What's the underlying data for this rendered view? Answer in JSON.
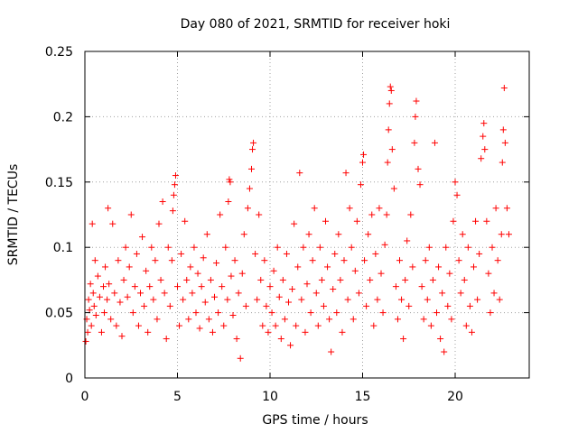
{
  "chart_data": {
    "type": "scatter",
    "title": "Day 080 of 2021, SRMTID for receiver hoki",
    "xlabel": "GPS time / hours",
    "ylabel": "SRMTID / TECUs",
    "xlim": [
      0,
      24
    ],
    "ylim": [
      0,
      0.25
    ],
    "x_ticks": [
      0,
      5,
      10,
      15,
      20
    ],
    "x_tick_labels": [
      "0",
      "5",
      "10",
      "15",
      "20"
    ],
    "y_ticks": [
      0,
      0.05,
      0.1,
      0.15,
      0.2,
      0.25
    ],
    "y_tick_labels": [
      "0",
      "0.05",
      "0.1",
      "0.15",
      "0.2",
      "0.25"
    ],
    "grid": true,
    "marker": "plus",
    "marker_color": "#ff0000",
    "series": [
      {
        "name": "SRMTID",
        "points": [
          [
            0.05,
            0.028
          ],
          [
            0.1,
            0.045
          ],
          [
            0.15,
            0.035
          ],
          [
            0.2,
            0.06
          ],
          [
            0.25,
            0.052
          ],
          [
            0.3,
            0.072
          ],
          [
            0.35,
            0.04
          ],
          [
            0.4,
            0.118
          ],
          [
            0.45,
            0.065
          ],
          [
            0.5,
            0.055
          ],
          [
            0.55,
            0.09
          ],
          [
            0.6,
            0.048
          ],
          [
            0.7,
            0.078
          ],
          [
            0.8,
            0.062
          ],
          [
            0.9,
            0.035
          ],
          [
            1.0,
            0.07
          ],
          [
            1.05,
            0.05
          ],
          [
            1.1,
            0.085
          ],
          [
            1.2,
            0.06
          ],
          [
            1.25,
            0.13
          ],
          [
            1.3,
            0.072
          ],
          [
            1.4,
            0.045
          ],
          [
            1.5,
            0.118
          ],
          [
            1.6,
            0.065
          ],
          [
            1.7,
            0.04
          ],
          [
            1.8,
            0.09
          ],
          [
            1.9,
            0.058
          ],
          [
            2.0,
            0.032
          ],
          [
            2.1,
            0.075
          ],
          [
            2.2,
            0.1
          ],
          [
            2.3,
            0.062
          ],
          [
            2.4,
            0.085
          ],
          [
            2.5,
            0.125
          ],
          [
            2.6,
            0.05
          ],
          [
            2.7,
            0.07
          ],
          [
            2.8,
            0.095
          ],
          [
            2.9,
            0.04
          ],
          [
            3.0,
            0.065
          ],
          [
            3.1,
            0.108
          ],
          [
            3.2,
            0.055
          ],
          [
            3.3,
            0.082
          ],
          [
            3.4,
            0.035
          ],
          [
            3.5,
            0.07
          ],
          [
            3.6,
            0.1
          ],
          [
            3.7,
            0.06
          ],
          [
            3.8,
            0.09
          ],
          [
            3.9,
            0.045
          ],
          [
            4.0,
            0.118
          ],
          [
            4.1,
            0.075
          ],
          [
            4.2,
            0.135
          ],
          [
            4.3,
            0.065
          ],
          [
            4.4,
            0.03
          ],
          [
            4.5,
            0.1
          ],
          [
            4.6,
            0.055
          ],
          [
            4.7,
            0.09
          ],
          [
            4.75,
            0.128
          ],
          [
            4.8,
            0.14
          ],
          [
            4.85,
            0.148
          ],
          [
            4.9,
            0.155
          ],
          [
            5.0,
            0.07
          ],
          [
            5.1,
            0.04
          ],
          [
            5.2,
            0.095
          ],
          [
            5.3,
            0.06
          ],
          [
            5.4,
            0.12
          ],
          [
            5.5,
            0.075
          ],
          [
            5.6,
            0.045
          ],
          [
            5.7,
            0.085
          ],
          [
            5.8,
            0.065
          ],
          [
            5.9,
            0.1
          ],
          [
            6.0,
            0.05
          ],
          [
            6.1,
            0.08
          ],
          [
            6.2,
            0.038
          ],
          [
            6.3,
            0.07
          ],
          [
            6.4,
            0.092
          ],
          [
            6.5,
            0.058
          ],
          [
            6.6,
            0.11
          ],
          [
            6.7,
            0.045
          ],
          [
            6.8,
            0.075
          ],
          [
            6.9,
            0.035
          ],
          [
            7.0,
            0.062
          ],
          [
            7.1,
            0.088
          ],
          [
            7.2,
            0.05
          ],
          [
            7.3,
            0.125
          ],
          [
            7.4,
            0.07
          ],
          [
            7.5,
            0.04
          ],
          [
            7.6,
            0.1
          ],
          [
            7.7,
            0.06
          ],
          [
            7.75,
            0.135
          ],
          [
            7.8,
            0.152
          ],
          [
            7.85,
            0.15
          ],
          [
            7.9,
            0.078
          ],
          [
            8.0,
            0.048
          ],
          [
            8.1,
            0.09
          ],
          [
            8.2,
            0.03
          ],
          [
            8.3,
            0.065
          ],
          [
            8.4,
            0.015
          ],
          [
            8.5,
            0.08
          ],
          [
            8.6,
            0.11
          ],
          [
            8.7,
            0.055
          ],
          [
            8.8,
            0.13
          ],
          [
            8.9,
            0.145
          ],
          [
            9.0,
            0.16
          ],
          [
            9.05,
            0.175
          ],
          [
            9.1,
            0.18
          ],
          [
            9.2,
            0.095
          ],
          [
            9.3,
            0.06
          ],
          [
            9.4,
            0.125
          ],
          [
            9.5,
            0.075
          ],
          [
            9.6,
            0.04
          ],
          [
            9.7,
            0.09
          ],
          [
            9.8,
            0.055
          ],
          [
            9.9,
            0.035
          ],
          [
            10.0,
            0.07
          ],
          [
            10.1,
            0.05
          ],
          [
            10.2,
            0.082
          ],
          [
            10.3,
            0.04
          ],
          [
            10.4,
            0.1
          ],
          [
            10.5,
            0.062
          ],
          [
            10.6,
            0.03
          ],
          [
            10.7,
            0.075
          ],
          [
            10.8,
            0.045
          ],
          [
            10.9,
            0.095
          ],
          [
            11.0,
            0.058
          ],
          [
            11.1,
            0.025
          ],
          [
            11.2,
            0.068
          ],
          [
            11.3,
            0.118
          ],
          [
            11.4,
            0.04
          ],
          [
            11.5,
            0.085
          ],
          [
            11.6,
            0.157
          ],
          [
            11.7,
            0.06
          ],
          [
            11.8,
            0.1
          ],
          [
            11.9,
            0.035
          ],
          [
            12.0,
            0.072
          ],
          [
            12.1,
            0.11
          ],
          [
            12.2,
            0.05
          ],
          [
            12.3,
            0.09
          ],
          [
            12.4,
            0.13
          ],
          [
            12.5,
            0.065
          ],
          [
            12.6,
            0.04
          ],
          [
            12.7,
            0.1
          ],
          [
            12.8,
            0.075
          ],
          [
            12.9,
            0.055
          ],
          [
            13.0,
            0.12
          ],
          [
            13.1,
            0.085
          ],
          [
            13.2,
            0.045
          ],
          [
            13.3,
            0.02
          ],
          [
            13.4,
            0.068
          ],
          [
            13.5,
            0.095
          ],
          [
            13.6,
            0.05
          ],
          [
            13.7,
            0.11
          ],
          [
            13.8,
            0.075
          ],
          [
            13.9,
            0.035
          ],
          [
            14.0,
            0.09
          ],
          [
            14.1,
            0.157
          ],
          [
            14.2,
            0.06
          ],
          [
            14.3,
            0.13
          ],
          [
            14.4,
            0.1
          ],
          [
            14.5,
            0.045
          ],
          [
            14.6,
            0.082
          ],
          [
            14.7,
            0.12
          ],
          [
            14.8,
            0.065
          ],
          [
            14.9,
            0.148
          ],
          [
            15.0,
            0.165
          ],
          [
            15.05,
            0.171
          ],
          [
            15.1,
            0.09
          ],
          [
            15.2,
            0.055
          ],
          [
            15.3,
            0.11
          ],
          [
            15.4,
            0.075
          ],
          [
            15.5,
            0.125
          ],
          [
            15.6,
            0.04
          ],
          [
            15.7,
            0.095
          ],
          [
            15.8,
            0.06
          ],
          [
            15.9,
            0.13
          ],
          [
            16.0,
            0.08
          ],
          [
            16.1,
            0.05
          ],
          [
            16.2,
            0.102
          ],
          [
            16.3,
            0.125
          ],
          [
            16.35,
            0.165
          ],
          [
            16.4,
            0.19
          ],
          [
            16.45,
            0.21
          ],
          [
            16.5,
            0.223
          ],
          [
            16.55,
            0.22
          ],
          [
            16.6,
            0.175
          ],
          [
            16.7,
            0.145
          ],
          [
            16.8,
            0.07
          ],
          [
            16.9,
            0.045
          ],
          [
            17.0,
            0.09
          ],
          [
            17.1,
            0.06
          ],
          [
            17.2,
            0.03
          ],
          [
            17.3,
            0.075
          ],
          [
            17.4,
            0.105
          ],
          [
            17.5,
            0.055
          ],
          [
            17.6,
            0.125
          ],
          [
            17.7,
            0.085
          ],
          [
            17.8,
            0.18
          ],
          [
            17.85,
            0.2
          ],
          [
            17.9,
            0.212
          ],
          [
            18.0,
            0.16
          ],
          [
            18.1,
            0.148
          ],
          [
            18.2,
            0.07
          ],
          [
            18.3,
            0.045
          ],
          [
            18.4,
            0.09
          ],
          [
            18.5,
            0.06
          ],
          [
            18.6,
            0.1
          ],
          [
            18.7,
            0.04
          ],
          [
            18.8,
            0.075
          ],
          [
            18.9,
            0.18
          ],
          [
            19.0,
            0.05
          ],
          [
            19.1,
            0.085
          ],
          [
            19.2,
            0.03
          ],
          [
            19.3,
            0.065
          ],
          [
            19.4,
            0.02
          ],
          [
            19.5,
            0.1
          ],
          [
            19.6,
            0.055
          ],
          [
            19.7,
            0.08
          ],
          [
            19.8,
            0.045
          ],
          [
            19.9,
            0.12
          ],
          [
            20.0,
            0.15
          ],
          [
            20.1,
            0.14
          ],
          [
            20.2,
            0.09
          ],
          [
            20.3,
            0.065
          ],
          [
            20.4,
            0.11
          ],
          [
            20.5,
            0.075
          ],
          [
            20.6,
            0.04
          ],
          [
            20.7,
            0.1
          ],
          [
            20.8,
            0.055
          ],
          [
            20.9,
            0.035
          ],
          [
            21.0,
            0.085
          ],
          [
            21.1,
            0.12
          ],
          [
            21.2,
            0.06
          ],
          [
            21.3,
            0.095
          ],
          [
            21.4,
            0.168
          ],
          [
            21.5,
            0.185
          ],
          [
            21.55,
            0.195
          ],
          [
            21.6,
            0.175
          ],
          [
            21.7,
            0.12
          ],
          [
            21.8,
            0.08
          ],
          [
            21.9,
            0.05
          ],
          [
            22.0,
            0.1
          ],
          [
            22.1,
            0.065
          ],
          [
            22.2,
            0.13
          ],
          [
            22.3,
            0.09
          ],
          [
            22.4,
            0.06
          ],
          [
            22.5,
            0.11
          ],
          [
            22.55,
            0.165
          ],
          [
            22.6,
            0.19
          ],
          [
            22.65,
            0.222
          ],
          [
            22.7,
            0.18
          ],
          [
            22.8,
            0.13
          ],
          [
            22.9,
            0.11
          ]
        ]
      }
    ]
  }
}
